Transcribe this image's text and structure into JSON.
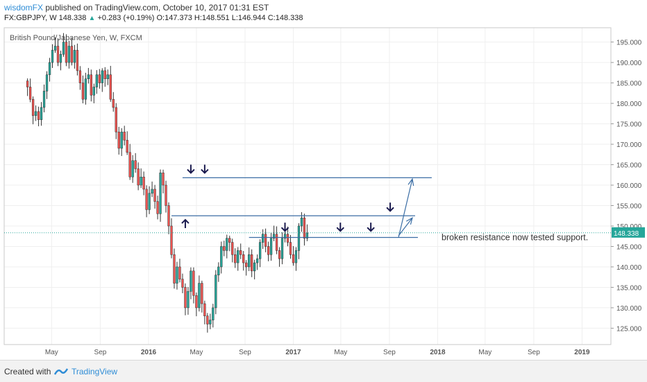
{
  "header": {
    "author": "wisdomFX",
    "published": "published on TradingView.com, October 10, 2017 01:31 EST",
    "symbol_line": "FX:GBPJPY, W  148.338",
    "change_arrow": "▲",
    "change": "+0.283 (+0.19%)",
    "ohlc": "O:147.373 H:148.551 L:146.944 C:148.338"
  },
  "footer": {
    "created_with": "Created with",
    "brand": "TradingView"
  },
  "chart_data": {
    "type": "candlestick",
    "title": "British Pound/Japanese Yen, W, FXCM",
    "last_price_label": "148.338",
    "last_price": 148.338,
    "ylim": [
      121,
      198.5
    ],
    "yticks": [
      125,
      130,
      135,
      140,
      145,
      150,
      155,
      160,
      165,
      170,
      175,
      180,
      185,
      190,
      195
    ],
    "ytick_labels": [
      "125.000",
      "130.000",
      "135.000",
      "140.000",
      "145.000",
      "150.000",
      "155.000",
      "160.000",
      "165.000",
      "170.000",
      "175.000",
      "180.000",
      "185.000",
      "190.000",
      "195.000"
    ],
    "xticks": [
      {
        "label": "May",
        "date": "2015-05-01",
        "bold": false
      },
      {
        "label": "Sep",
        "date": "2015-09-01",
        "bold": false
      },
      {
        "label": "2016",
        "date": "2016-01-01",
        "bold": true
      },
      {
        "label": "May",
        "date": "2016-05-01",
        "bold": false
      },
      {
        "label": "Sep",
        "date": "2016-09-01",
        "bold": false
      },
      {
        "label": "2017",
        "date": "2017-01-01",
        "bold": true
      },
      {
        "label": "May",
        "date": "2017-05-01",
        "bold": false
      },
      {
        "label": "Sep",
        "date": "2017-09-01",
        "bold": false
      },
      {
        "label": "2018",
        "date": "2018-01-01",
        "bold": true
      },
      {
        "label": "May",
        "date": "2018-05-01",
        "bold": false
      },
      {
        "label": "Sep",
        "date": "2018-09-01",
        "bold": false
      },
      {
        "label": "2019",
        "date": "2019-01-01",
        "bold": true
      }
    ],
    "first_week": "2015-03-01",
    "closes": [
      184,
      181,
      177,
      178,
      176,
      179,
      183,
      187,
      190,
      193,
      194,
      190,
      192,
      195,
      190,
      194,
      190,
      193,
      188,
      185,
      181,
      186,
      187,
      182,
      184,
      187,
      185,
      188,
      186,
      187,
      181,
      179,
      173,
      169,
      173,
      171,
      168,
      162,
      166,
      164,
      160,
      162,
      159,
      154,
      158,
      159,
      156,
      153,
      163,
      160,
      155,
      150,
      143,
      136,
      140,
      137,
      135,
      130,
      134,
      139,
      133,
      130,
      136,
      131,
      128,
      126,
      127,
      130,
      138,
      140,
      145,
      144,
      147,
      146,
      143,
      141,
      144,
      143,
      141,
      140,
      143,
      139,
      141,
      142,
      146,
      148,
      145,
      143,
      147,
      148,
      144,
      142,
      147,
      148,
      146,
      143,
      141,
      144,
      150,
      152,
      147,
      148.3
    ],
    "candle_color_up": "#26a69a",
    "candle_color_down": "#ef5350",
    "horizontal_lines": [
      {
        "level": 161.8,
        "from": "2016-03-27",
        "to": "2017-12-17",
        "color": "#3b6ea5"
      },
      {
        "level": 152.5,
        "from": "2016-02-28",
        "to": "2017-11-05",
        "color": "#3b6ea5"
      },
      {
        "level": 147.2,
        "from": "2016-09-11",
        "to": "2017-11-12",
        "color": "#3b6ea5"
      }
    ],
    "markers": [
      {
        "date": "2016-04-17",
        "price": 164.0,
        "dir": "down"
      },
      {
        "date": "2016-05-22",
        "price": 164.0,
        "dir": "down"
      },
      {
        "date": "2016-04-03",
        "price": 150.5,
        "dir": "up"
      },
      {
        "date": "2016-12-11",
        "price": 149.8,
        "dir": "down"
      },
      {
        "date": "2017-04-30",
        "price": 149.8,
        "dir": "down"
      },
      {
        "date": "2017-07-16",
        "price": 149.8,
        "dir": "down"
      },
      {
        "date": "2017-09-03",
        "price": 154.7,
        "dir": "down"
      }
    ],
    "projection_arrows": [
      {
        "from_date": "2017-09-24",
        "from_price": 147.2,
        "to_date": "2017-10-29",
        "to_price": 161.5
      },
      {
        "from_date": "2017-09-24",
        "from_price": 147.6,
        "to_date": "2017-10-29",
        "to_price": 152.0
      }
    ],
    "annotation": "broken resistance now tested support.",
    "grid": true
  }
}
